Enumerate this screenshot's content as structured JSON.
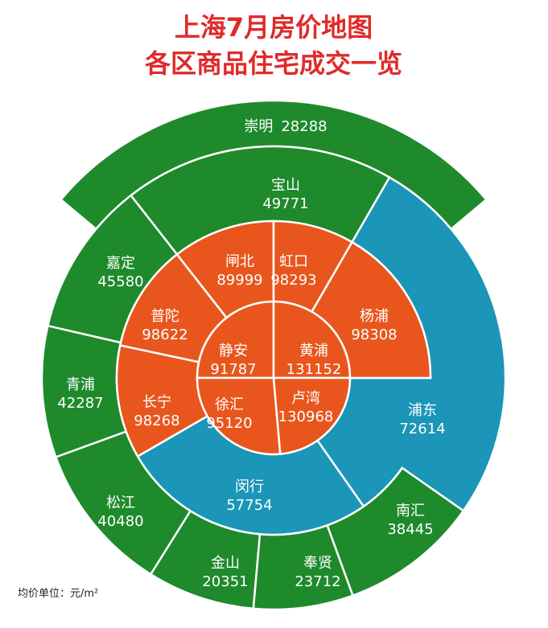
{
  "title": [
    "上海7月房价地图",
    "各区商品住宅成交一览"
  ],
  "districts": [
    {
      "name": "崇明",
      "value": 28288,
      "color": "#1e8a2c"
    },
    {
      "name": "宝山",
      "value": 49771,
      "color": "#1e8a2c"
    },
    {
      "name": "嘉定",
      "value": 45580,
      "color": "#1e8a2c"
    },
    {
      "name": "青浦",
      "value": 42287,
      "color": "#1e8a2c"
    },
    {
      "name": "松江",
      "value": 40480,
      "color": "#1e8a2c"
    },
    {
      "name": "金山",
      "value": 20351,
      "color": "#1e8a2c"
    },
    {
      "name": "奉贤",
      "value": 23712,
      "color": "#1e8a2c"
    },
    {
      "name": "南汇",
      "value": 38445,
      "color": "#1e8a2c"
    },
    {
      "name": "浦东",
      "value": 72614,
      "color": "#1b95b8"
    },
    {
      "name": "闵行",
      "value": 57754,
      "color": "#1b95b8"
    },
    {
      "name": "长宁",
      "value": 98268,
      "color": "#e8561e"
    },
    {
      "name": "普陀",
      "value": 98622,
      "color": "#e8561e"
    },
    {
      "name": "闸北",
      "value": 89999,
      "color": "#e8561e"
    },
    {
      "name": "虹口",
      "value": 98293,
      "color": "#e8561e"
    },
    {
      "name": "杨浦",
      "value": 98308,
      "color": "#e8561e"
    },
    {
      "name": "静安",
      "value": 91787,
      "color": "#e8561e"
    },
    {
      "name": "黄浦",
      "value": 131152,
      "color": "#e8561e"
    },
    {
      "name": "徐汇",
      "value": 95120,
      "color": "#e8561e"
    },
    {
      "name": "卢湾",
      "value": 130968,
      "color": "#e8561e"
    }
  ],
  "footnote": "均价单位：元/m²"
}
